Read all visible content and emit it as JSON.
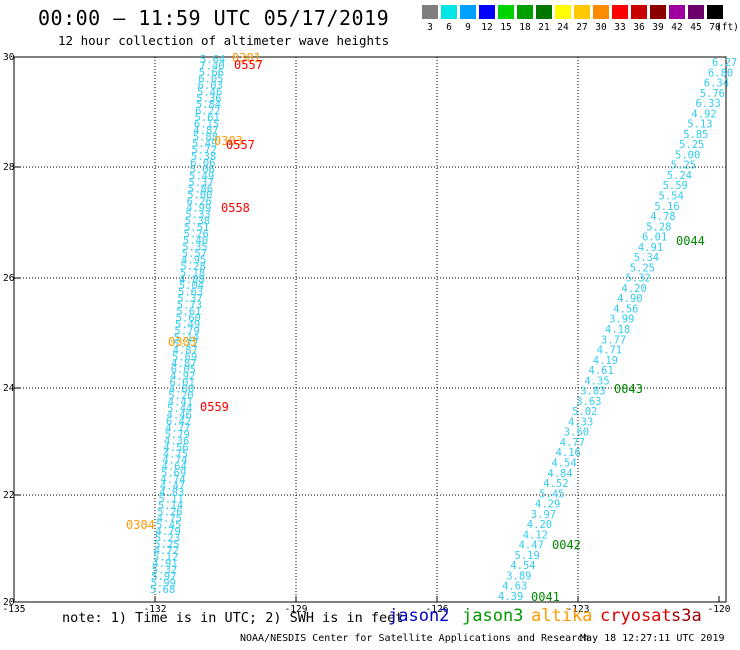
{
  "header": {
    "title": "00:00 – 11:59 UTC 05/17/2019",
    "subtitle": "12 hour collection of altimeter wave heights"
  },
  "legend": {
    "unit": "(ft)",
    "items": [
      {
        "label": "3",
        "color": "#7f7f7f"
      },
      {
        "label": "6",
        "color": "#00e5e5"
      },
      {
        "label": "9",
        "color": "#00a0ff"
      },
      {
        "label": "12",
        "color": "#0000ff"
      },
      {
        "label": "15",
        "color": "#00d200"
      },
      {
        "label": "18",
        "color": "#00a000"
      },
      {
        "label": "21",
        "color": "#007800"
      },
      {
        "label": "24",
        "color": "#ffff00"
      },
      {
        "label": "27",
        "color": "#ffc800"
      },
      {
        "label": "30",
        "color": "#ff8c00"
      },
      {
        "label": "33",
        "color": "#ff0000"
      },
      {
        "label": "36",
        "color": "#c80000"
      },
      {
        "label": "39",
        "color": "#8c0000"
      },
      {
        "label": "42",
        "color": "#a000a0"
      },
      {
        "label": "45",
        "color": "#6e006e"
      },
      {
        "label": "70",
        "color": "#000000"
      }
    ]
  },
  "map": {
    "x_ticks": [
      "-135",
      "-132",
      "-129",
      "-126",
      "-123",
      "-120"
    ],
    "y_ticks": [
      "30",
      "28",
      "26",
      "24",
      "22",
      "20"
    ],
    "track_color": "#33ccee",
    "left_track_values": [
      "5.64",
      "7.40",
      "5.66",
      "6.05",
      "6.03",
      "5.46",
      "5.36",
      "5.84",
      "6.22",
      "5.61",
      "6.15",
      "4.87",
      "5.88",
      "5.49",
      "5.72",
      "5.38",
      "6.06",
      "5.06",
      "5.49",
      "5.37",
      "5.86",
      "5.00",
      "6.26",
      "4.99",
      "5.33",
      "5.38",
      "5.51",
      "5.26",
      "5.40",
      "5.35",
      "5.57",
      "4.95",
      "5.28",
      "5.18",
      "4.88",
      "5.04",
      "5.63",
      "5.37",
      "5.73",
      "5.61",
      "5.60",
      "5.49",
      "5.79",
      "5.14",
      "5.77",
      "4.87",
      "5.69",
      "4.87",
      "6.05",
      "4.92",
      "6.01",
      "4.80",
      "5.20",
      "4.41",
      "5.44",
      "4.46",
      "6.42",
      "4.77",
      "5.79",
      "4.36",
      "4.56",
      "4.75",
      "4.74",
      "4.64",
      "5.69",
      "4.74",
      "4.47",
      "4.83",
      "5.11",
      "5.14",
      "5.26",
      "4.75",
      "5.45",
      "4.79",
      "5.23",
      "5.25",
      "4.72",
      "5.12",
      "4.91",
      "5.32",
      "5.97",
      "5.99",
      "5.68"
    ],
    "right_track_values": [
      "6.27",
      "6.80",
      "6.34",
      "5.76",
      "6.33",
      "4.92",
      "5.13",
      "5.85",
      "5.25",
      "5.00",
      "5.25",
      "5.24",
      "5.59",
      "5.54",
      "5.16",
      "4.78",
      "5.28",
      "6.01",
      "4.91",
      "5.34",
      "5.25",
      "5.32",
      "4.20",
      "4.90",
      "4.56",
      "3.99",
      "4.18",
      "3.77",
      "4.71",
      "4.19",
      "4.61",
      "4.35",
      "3.83",
      "3.63",
      "5.02",
      "4.33",
      "3.60",
      "4.77",
      "4.16",
      "4.54",
      "4.84",
      "4.52",
      "5.45",
      "4.29",
      "3.97",
      "4.20",
      "4.12",
      "4.47",
      "5.19",
      "4.54",
      "3.89",
      "4.63",
      "4.39"
    ],
    "pass_labels": [
      {
        "text": "0301",
        "sat": "altika",
        "color": "#ff9900"
      },
      {
        "text": "0557",
        "sat": "cryosat",
        "color": "#ff0000"
      },
      {
        "text": "0303",
        "sat": "altika",
        "color": "#ff9900"
      },
      {
        "text": "0557",
        "sat": "cryosat",
        "color": "#ff0000"
      },
      {
        "text": "0558",
        "sat": "cryosat",
        "color": "#ff0000"
      },
      {
        "text": "0303",
        "sat": "altika",
        "color": "#ff9900"
      },
      {
        "text": "0559",
        "sat": "cryosat",
        "color": "#ff0000"
      },
      {
        "text": "0304",
        "sat": "altika",
        "color": "#ff9900"
      },
      {
        "text": "0044",
        "sat": "jason3",
        "color": "#008800"
      },
      {
        "text": "0043",
        "sat": "jason3",
        "color": "#008800"
      },
      {
        "text": "0042",
        "sat": "jason3",
        "color": "#008800"
      },
      {
        "text": "0041",
        "sat": "jason3",
        "color": "#008800"
      }
    ]
  },
  "footer": {
    "note": "note: 1) Time is in UTC; 2) SWH is in feet",
    "satellites": [
      {
        "name": "jason2",
        "color": "#0000cc"
      },
      {
        "name": "jason3",
        "color": "#009900"
      },
      {
        "name": "altika",
        "color": "#ff9900"
      },
      {
        "name": "cryosat",
        "color": "#dd0000"
      },
      {
        "name": "s3a",
        "color": "#990000"
      }
    ],
    "credit": "NOAA/NESDIS Center for Satellite Applications and Research",
    "timestamp": "May 18 12:27:11 UTC 2019"
  }
}
